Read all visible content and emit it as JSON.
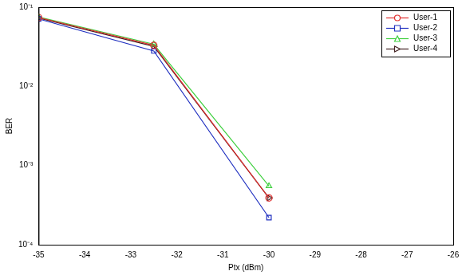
{
  "chart_data": {
    "type": "line",
    "x_label": "Ptx (dBm)",
    "y_label": "BER",
    "x": [
      -35,
      -32.5,
      -30
    ],
    "series": [
      {
        "name": "User-1",
        "color": "#e03030",
        "marker": "circle",
        "values": [
          0.074,
          0.033,
          0.00039
        ]
      },
      {
        "name": "User-2",
        "color": "#2030c0",
        "marker": "square",
        "values": [
          0.071,
          0.028,
          0.00022
        ]
      },
      {
        "name": "User-3",
        "color": "#40d040",
        "marker": "triangle-up",
        "values": [
          0.075,
          0.034,
          0.00055
        ]
      },
      {
        "name": "User-4",
        "color": "#402020",
        "marker": "triangle-right",
        "values": [
          0.073,
          0.032,
          0.00039
        ]
      }
    ],
    "xlim": [
      -35,
      -26
    ],
    "xticks": [
      -35,
      -34,
      -33,
      -32,
      -31,
      -30,
      -29,
      -28,
      -27,
      -26
    ],
    "ylim": [
      0.0001,
      0.1
    ],
    "yticks": [
      {
        "value": 0.0001,
        "label": "10⁻⁴"
      },
      {
        "value": 0.001,
        "label": "10⁻³"
      },
      {
        "value": 0.01,
        "label": "10⁻²"
      },
      {
        "value": 0.1,
        "label": "10⁻¹"
      }
    ],
    "log": "y",
    "grid": false,
    "legend": "top-right"
  }
}
